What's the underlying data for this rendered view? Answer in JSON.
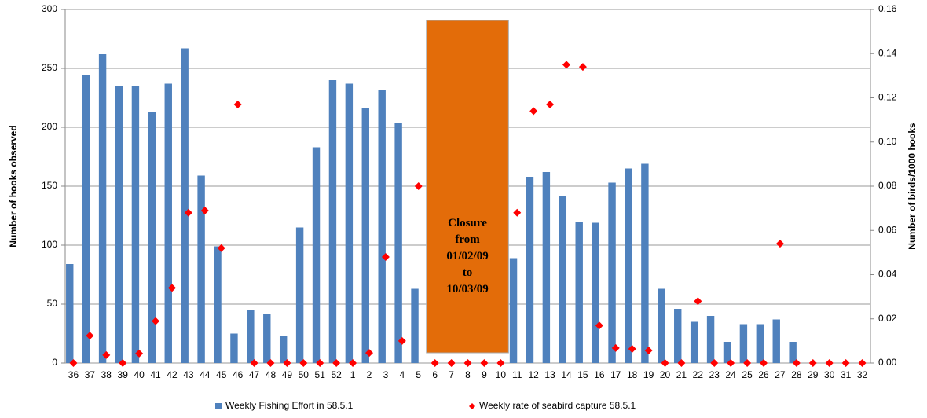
{
  "chart_data": {
    "type": "bar_scatter",
    "categories": [
      "36",
      "37",
      "38",
      "39",
      "40",
      "41",
      "42",
      "43",
      "44",
      "45",
      "46",
      "47",
      "48",
      "49",
      "50",
      "51",
      "52",
      "1",
      "2",
      "3",
      "4",
      "5",
      "6",
      "7",
      "8",
      "9",
      "10",
      "11",
      "12",
      "13",
      "14",
      "15",
      "16",
      "17",
      "18",
      "19",
      "20",
      "21",
      "22",
      "23",
      "24",
      "25",
      "26",
      "27",
      "28",
      "29",
      "30",
      "31",
      "32"
    ],
    "series": [
      {
        "name": "Weekly Fishing Effort in 58.5.1",
        "color": "#4f81bd",
        "kind": "bar",
        "values": [
          84,
          244,
          262,
          235,
          235,
          213,
          237,
          267,
          159,
          99,
          25,
          45,
          42,
          23,
          115,
          183,
          240,
          237,
          216,
          232,
          204,
          63,
          0,
          0,
          0,
          0,
          0,
          89,
          158,
          162,
          142,
          120,
          119,
          153,
          165,
          169,
          63,
          46,
          35,
          40,
          18,
          33,
          33,
          37,
          18,
          0,
          0,
          0,
          0
        ]
      },
      {
        "name": "Weekly rate of seabird capture 58.5.1",
        "color": "#ff0000",
        "kind": "diamond",
        "axis": "y2",
        "values": [
          0,
          0.0124,
          0.0036,
          0,
          0.0043,
          0.019,
          0.034,
          0.068,
          0.069,
          0.052,
          0.117,
          0,
          0,
          0,
          0,
          0,
          0,
          0,
          0.0046,
          0.048,
          0.01,
          0.08,
          0,
          0,
          0,
          0,
          0,
          0.068,
          0.114,
          0.117,
          0.135,
          0.134,
          0.017,
          0.0068,
          0.0064,
          0.0057,
          0,
          0,
          0.028,
          0,
          0,
          0,
          0,
          0.054,
          0,
          0,
          0,
          0,
          0
        ]
      }
    ],
    "y_label": "Number of hooks observed",
    "y2_label": "Number of birds/1000 hooks",
    "ylim": [
      0,
      300
    ],
    "yticks": [
      0,
      50,
      100,
      150,
      200,
      250,
      300
    ],
    "y2lim": [
      0,
      0.16
    ],
    "y2ticks": [
      {
        "value": 0,
        "label": "0.00"
      },
      {
        "value": 0.02,
        "label": "0.02"
      },
      {
        "value": 0.04,
        "label": "0.04"
      },
      {
        "value": 0.06,
        "label": "0.06"
      },
      {
        "value": 0.08,
        "label": "0.08"
      },
      {
        "value": 0.1,
        "label": "0.10"
      },
      {
        "value": 0.12,
        "label": "0.12"
      },
      {
        "value": 0.14,
        "label": "0.14"
      },
      {
        "value": 0.16,
        "label": "0.16"
      }
    ],
    "annotation": "Closure from 01/02/09 to 10/03/09",
    "annotation_color": "#e36c09",
    "grid": true,
    "legend": "bottom"
  }
}
